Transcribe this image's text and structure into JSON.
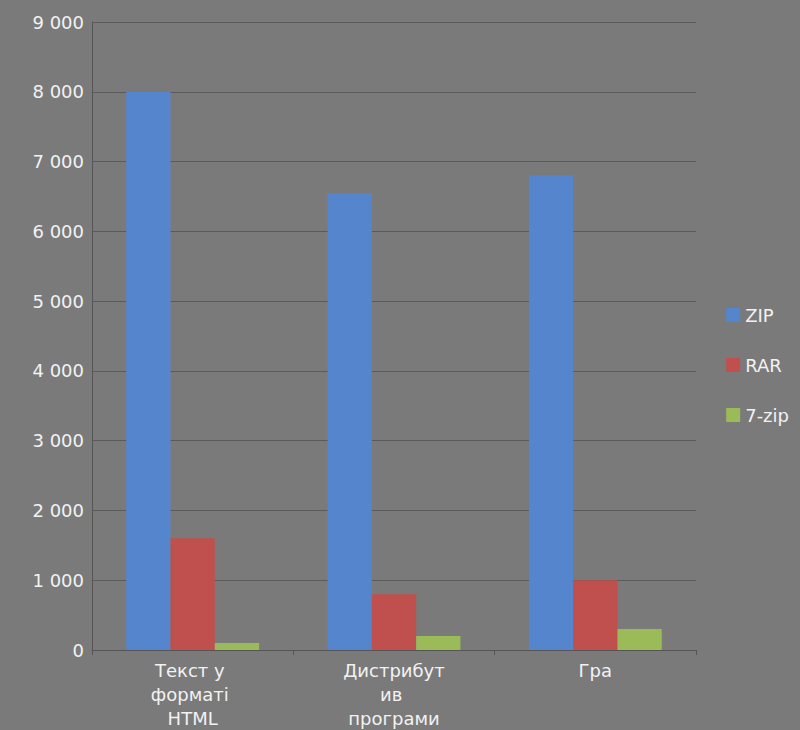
{
  "chart_data": {
    "type": "bar",
    "categories": [
      "Текст у форматі HTML",
      "Дистрибутив програми",
      "Гра"
    ],
    "series": [
      {
        "name": "ZIP",
        "color": "#5585cc",
        "values": [
          8000,
          6550,
          6800
        ]
      },
      {
        "name": "RAR",
        "color": "#c0504d",
        "values": [
          1600,
          800,
          1000
        ]
      },
      {
        "name": "7-zip",
        "color": "#9bbb59",
        "values": [
          100,
          200,
          300
        ]
      }
    ],
    "ylim": [
      0,
      9000
    ],
    "yticks": [
      0,
      {
        "value": 1000,
        "label": "1 000"
      },
      {
        "value": 2000,
        "label": "2 000"
      },
      {
        "value": 3000,
        "label": "3 000"
      },
      {
        "value": 4000,
        "label": "4 000"
      },
      {
        "value": 5000,
        "label": "5 000"
      },
      {
        "value": 6000,
        "label": "6 000"
      },
      {
        "value": 7000,
        "label": "7 000"
      },
      {
        "value": 8000,
        "label": "8 000"
      },
      {
        "value": 9000,
        "label": "9 000"
      }
    ],
    "grid": true,
    "legend": "right"
  }
}
